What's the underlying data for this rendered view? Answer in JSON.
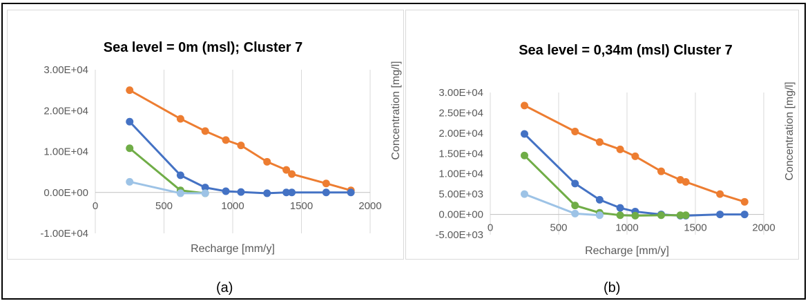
{
  "chart_data": [
    {
      "type": "line",
      "title": "Sea level = 0m (msl); Cluster 7",
      "xlabel": "Recharge [mm/y]",
      "ylabel": "",
      "xlim": [
        0,
        2000
      ],
      "ylim": [
        -10000,
        30000
      ],
      "x_ticks": [
        "0",
        "500",
        "1000",
        "1500",
        "2000"
      ],
      "y_ticks": [
        "-1.00E+04",
        "0.00E+00",
        "1.00E+04",
        "2.00E+04",
        "3.00E+04"
      ],
      "grid": "vertical",
      "series": [
        {
          "color": "#ed7d31",
          "x": [
            250,
            620,
            800,
            950,
            1060,
            1250,
            1390,
            1430,
            1680,
            1860
          ],
          "y": [
            25000,
            18000,
            15000,
            12800,
            11500,
            7500,
            5500,
            4500,
            2200,
            500
          ]
        },
        {
          "color": "#4472c4",
          "x": [
            250,
            620,
            800,
            950,
            1060,
            1250,
            1390,
            1430,
            1680,
            1860
          ],
          "y": [
            17300,
            4200,
            1200,
            300,
            100,
            -200,
            0,
            0,
            0,
            0
          ]
        },
        {
          "color": "#70ad47",
          "x": [
            250,
            620,
            800
          ],
          "y": [
            10800,
            500,
            -200
          ]
        },
        {
          "color": "#9dc3e6",
          "x": [
            250,
            620,
            800
          ],
          "y": [
            2600,
            -200,
            -200
          ]
        }
      ]
    },
    {
      "type": "line",
      "title": "Sea level =  0,34m (msl) Cluster 7",
      "xlabel": "Recharge [mm/y]",
      "ylabel": "Concentration [mg/l]",
      "xlim": [
        0,
        2000
      ],
      "ylim": [
        -5000,
        30000
      ],
      "x_ticks": [
        "0",
        "500",
        "1000",
        "1500",
        "2000"
      ],
      "y_ticks": [
        "-5.00E+03",
        "0.00E+00",
        "5.00E+03",
        "1.00E+04",
        "1.50E+04",
        "2.00E+04",
        "2.50E+04",
        "3.00E+04"
      ],
      "grid": "vertical",
      "series": [
        {
          "color": "#ed7d31",
          "x": [
            250,
            620,
            800,
            950,
            1060,
            1250,
            1390,
            1430,
            1680,
            1860
          ],
          "y": [
            26800,
            20400,
            17800,
            16000,
            14300,
            10600,
            8500,
            8000,
            5000,
            3100
          ]
        },
        {
          "color": "#4472c4",
          "x": [
            250,
            620,
            800,
            950,
            1060,
            1250,
            1390,
            1430,
            1680,
            1860
          ],
          "y": [
            19800,
            7600,
            3600,
            1600,
            700,
            0,
            -300,
            -300,
            0,
            0
          ]
        },
        {
          "color": "#70ad47",
          "x": [
            250,
            620,
            800,
            950,
            1060,
            1250,
            1390,
            1430
          ],
          "y": [
            14500,
            2200,
            400,
            -200,
            -300,
            -200,
            -200,
            -200
          ]
        },
        {
          "color": "#9dc3e6",
          "x": [
            250,
            620,
            800
          ],
          "y": [
            5000,
            200,
            -200
          ]
        }
      ]
    }
  ],
  "side_labels": [
    "Concentration [mg/l]",
    "Concentration [mg/l]"
  ],
  "captions": [
    "(a)",
    "(b)"
  ]
}
